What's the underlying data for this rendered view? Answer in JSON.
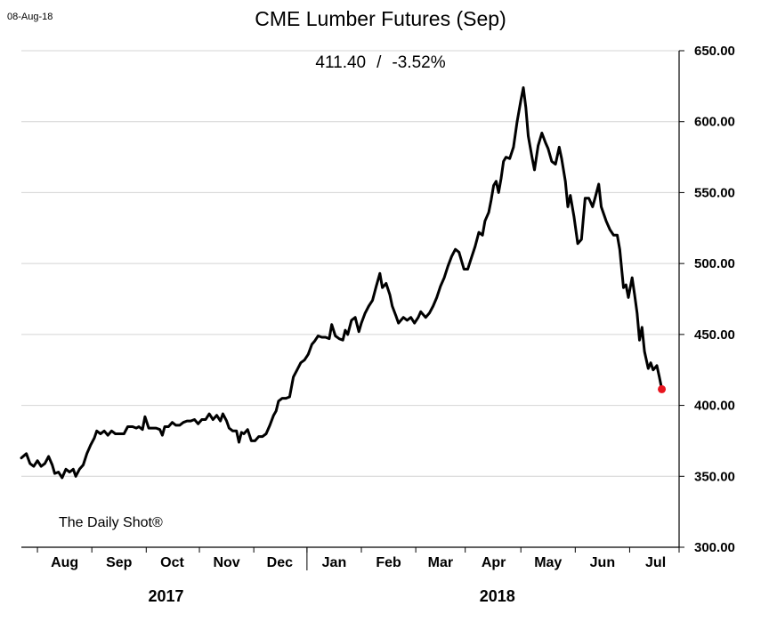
{
  "header": {
    "date_stamp": "08-Aug-18",
    "title": "CME Lumber Futures (Sep)",
    "last_price": "411.40",
    "separator": "/",
    "change": "-3.52%"
  },
  "watermark": "The Daily Shot®",
  "chart_data": {
    "type": "line",
    "title": "CME Lumber Futures (Sep)",
    "xlabel": "",
    "ylabel": "",
    "ylim": [
      300,
      650
    ],
    "y_ticks": [
      "650.00",
      "600.00",
      "550.00",
      "500.00",
      "450.00",
      "400.00",
      "350.00",
      "300.00"
    ],
    "y_tick_values": [
      650,
      600,
      550,
      500,
      450,
      400,
      350,
      300
    ],
    "x_range": [
      0,
      53.2
    ],
    "months": [
      {
        "label": "Aug",
        "center": 3.5
      },
      {
        "label": "Sep",
        "center": 7.9
      },
      {
        "label": "Oct",
        "center": 12.2
      },
      {
        "label": "Nov",
        "center": 16.6
      },
      {
        "label": "Dec",
        "center": 20.9
      },
      {
        "label": "Jan",
        "center": 25.3
      },
      {
        "label": "Feb",
        "center": 29.7
      },
      {
        "label": "Mar",
        "center": 33.9
      },
      {
        "label": "Apr",
        "center": 38.2
      },
      {
        "label": "May",
        "center": 42.6
      },
      {
        "label": "Jun",
        "center": 47.0
      },
      {
        "label": "Jul",
        "center": 51.3
      }
    ],
    "month_ticks": [
      1.3,
      5.7,
      10.1,
      14.4,
      18.8,
      23.1,
      27.5,
      31.9,
      35.9,
      40.4,
      44.8,
      49.2,
      53.2
    ],
    "year_divider": 23.1,
    "years": [
      {
        "label": "2017",
        "center": 11.7
      },
      {
        "label": "2018",
        "center": 38.5
      }
    ],
    "grid": true,
    "series": [
      {
        "name": "CME Lumber Futures (Sep)",
        "color": "#000000",
        "points": [
          [
            0.0,
            363
          ],
          [
            0.4,
            366
          ],
          [
            0.7,
            359
          ],
          [
            1.0,
            357
          ],
          [
            1.3,
            361
          ],
          [
            1.6,
            357
          ],
          [
            1.9,
            359
          ],
          [
            2.2,
            364
          ],
          [
            2.5,
            358
          ],
          [
            2.7,
            352
          ],
          [
            3.0,
            353
          ],
          [
            3.3,
            349
          ],
          [
            3.6,
            355
          ],
          [
            3.9,
            353
          ],
          [
            4.2,
            355
          ],
          [
            4.4,
            350
          ],
          [
            4.7,
            355
          ],
          [
            5.0,
            358
          ],
          [
            5.3,
            366
          ],
          [
            5.6,
            372
          ],
          [
            5.9,
            377
          ],
          [
            6.1,
            382
          ],
          [
            6.4,
            380
          ],
          [
            6.7,
            382
          ],
          [
            7.0,
            379
          ],
          [
            7.3,
            382
          ],
          [
            7.6,
            380
          ],
          [
            8.0,
            380
          ],
          [
            8.3,
            380
          ],
          [
            8.6,
            385
          ],
          [
            9.0,
            385
          ],
          [
            9.3,
            384
          ],
          [
            9.5,
            385
          ],
          [
            9.8,
            383
          ],
          [
            10.0,
            392
          ],
          [
            10.3,
            384
          ],
          [
            10.6,
            384
          ],
          [
            10.9,
            384
          ],
          [
            11.2,
            383
          ],
          [
            11.4,
            379
          ],
          [
            11.6,
            385
          ],
          [
            11.9,
            385
          ],
          [
            12.2,
            388
          ],
          [
            12.5,
            386
          ],
          [
            12.8,
            386
          ],
          [
            13.1,
            388
          ],
          [
            13.4,
            389
          ],
          [
            13.7,
            389
          ],
          [
            14.0,
            390
          ],
          [
            14.3,
            387
          ],
          [
            14.6,
            390
          ],
          [
            14.9,
            390
          ],
          [
            15.2,
            394
          ],
          [
            15.5,
            390
          ],
          [
            15.8,
            393
          ],
          [
            16.1,
            389
          ],
          [
            16.3,
            394
          ],
          [
            16.6,
            389
          ],
          [
            16.8,
            384
          ],
          [
            17.1,
            382
          ],
          [
            17.4,
            382
          ],
          [
            17.6,
            374
          ],
          [
            17.8,
            381
          ],
          [
            18.0,
            380
          ],
          [
            18.3,
            383
          ],
          [
            18.6,
            375
          ],
          [
            18.9,
            375
          ],
          [
            19.2,
            378
          ],
          [
            19.5,
            378
          ],
          [
            19.8,
            380
          ],
          [
            20.1,
            386
          ],
          [
            20.4,
            393
          ],
          [
            20.6,
            396
          ],
          [
            20.8,
            403
          ],
          [
            21.1,
            405
          ],
          [
            21.4,
            405
          ],
          [
            21.7,
            406
          ],
          [
            22.0,
            420
          ],
          [
            22.3,
            425
          ],
          [
            22.6,
            430
          ],
          [
            22.9,
            432
          ],
          [
            23.2,
            436
          ],
          [
            23.5,
            443
          ],
          [
            23.7,
            445
          ],
          [
            24.0,
            449
          ],
          [
            24.3,
            448
          ],
          [
            24.6,
            448
          ],
          [
            24.9,
            447
          ],
          [
            25.1,
            457
          ],
          [
            25.4,
            449
          ],
          [
            25.7,
            447
          ],
          [
            26.0,
            446
          ],
          [
            26.2,
            453
          ],
          [
            26.4,
            450
          ],
          [
            26.7,
            460
          ],
          [
            27.0,
            462
          ],
          [
            27.3,
            452
          ],
          [
            27.5,
            458
          ],
          [
            27.8,
            465
          ],
          [
            28.1,
            470
          ],
          [
            28.4,
            474
          ],
          [
            28.7,
            484
          ],
          [
            29.0,
            493
          ],
          [
            29.2,
            483
          ],
          [
            29.5,
            486
          ],
          [
            29.8,
            478
          ],
          [
            30.0,
            470
          ],
          [
            30.3,
            463
          ],
          [
            30.5,
            458
          ],
          [
            30.9,
            462
          ],
          [
            31.2,
            460
          ],
          [
            31.5,
            462
          ],
          [
            31.8,
            458
          ],
          [
            32.1,
            462
          ],
          [
            32.3,
            466
          ],
          [
            32.7,
            462
          ],
          [
            33.0,
            465
          ],
          [
            33.3,
            470
          ],
          [
            33.6,
            476
          ],
          [
            33.9,
            484
          ],
          [
            34.2,
            490
          ],
          [
            34.5,
            498
          ],
          [
            34.8,
            505
          ],
          [
            35.1,
            510
          ],
          [
            35.4,
            508
          ],
          [
            35.6,
            502
          ],
          [
            35.8,
            496
          ],
          [
            36.1,
            496
          ],
          [
            36.4,
            504
          ],
          [
            36.7,
            512
          ],
          [
            37.0,
            522
          ],
          [
            37.3,
            520
          ],
          [
            37.5,
            530
          ],
          [
            37.8,
            536
          ],
          [
            38.0,
            545
          ],
          [
            38.2,
            555
          ],
          [
            38.4,
            558
          ],
          [
            38.6,
            550
          ],
          [
            38.8,
            560
          ],
          [
            39.0,
            572
          ],
          [
            39.2,
            575
          ],
          [
            39.5,
            574
          ],
          [
            39.8,
            582
          ],
          [
            40.1,
            600
          ],
          [
            40.4,
            615
          ],
          [
            40.6,
            624
          ],
          [
            40.8,
            610
          ],
          [
            41.0,
            590
          ],
          [
            41.3,
            575
          ],
          [
            41.5,
            566
          ],
          [
            41.8,
            583
          ],
          [
            42.1,
            592
          ],
          [
            42.4,
            585
          ],
          [
            42.6,
            581
          ],
          [
            42.9,
            572
          ],
          [
            43.2,
            570
          ],
          [
            43.5,
            582
          ],
          [
            43.7,
            574
          ],
          [
            44.0,
            558
          ],
          [
            44.2,
            540
          ],
          [
            44.4,
            548
          ],
          [
            44.7,
            533
          ],
          [
            45.0,
            514
          ],
          [
            45.3,
            517
          ],
          [
            45.6,
            546
          ],
          [
            45.9,
            546
          ],
          [
            46.2,
            540
          ],
          [
            46.4,
            546
          ],
          [
            46.7,
            556
          ],
          [
            46.9,
            540
          ],
          [
            47.3,
            530
          ],
          [
            47.6,
            524
          ],
          [
            47.9,
            520
          ],
          [
            48.2,
            520
          ],
          [
            48.4,
            510
          ],
          [
            48.7,
            483
          ],
          [
            48.9,
            485
          ],
          [
            49.1,
            476
          ],
          [
            49.4,
            490
          ],
          [
            49.6,
            478
          ],
          [
            49.8,
            465
          ],
          [
            50.0,
            446
          ],
          [
            50.2,
            455
          ],
          [
            50.4,
            438
          ],
          [
            50.7,
            426
          ],
          [
            50.9,
            430
          ],
          [
            51.1,
            425
          ],
          [
            51.4,
            428
          ],
          [
            51.6,
            420
          ],
          [
            51.8,
            411.4
          ]
        ]
      }
    ],
    "last_point": {
      "x": 51.8,
      "y": 411.4,
      "color": "#e8141e"
    }
  }
}
